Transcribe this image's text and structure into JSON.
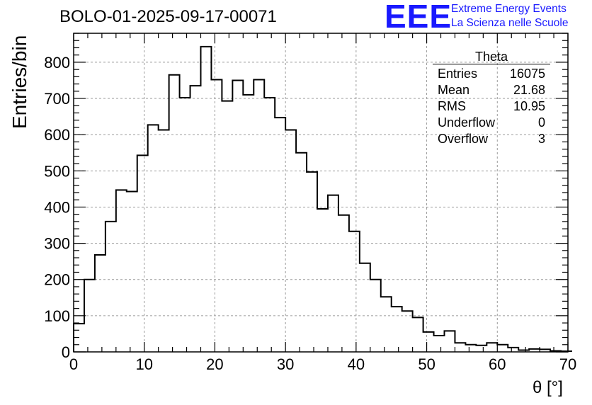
{
  "title": "BOLO-01-2025-09-17-00071",
  "logo": {
    "mark": "EEE",
    "line1": "Extreme Energy Events",
    "line2": "La Scienza nelle Scuole"
  },
  "stats": {
    "name": "Theta",
    "rows": [
      {
        "label": "Entries",
        "value": "16075"
      },
      {
        "label": "Mean",
        "value": "21.68"
      },
      {
        "label": "RMS",
        "value": "10.95"
      },
      {
        "label": "Underflow",
        "value": "0"
      },
      {
        "label": "Overflow",
        "value": "3"
      }
    ]
  },
  "colors": {
    "accent": "#1919ff",
    "line": "#000000",
    "grid": "#9a9a9a"
  },
  "chart_data": {
    "type": "bar",
    "style": "step-histogram",
    "title": "BOLO-01-2025-09-17-00071",
    "xlabel": "θ [°]",
    "ylabel": "Entries/bin",
    "xlim": [
      0,
      70
    ],
    "ylim": [
      0,
      880
    ],
    "bin_width": 1.5,
    "xticks": [
      0,
      10,
      20,
      30,
      40,
      50,
      60,
      70
    ],
    "yticks": [
      0,
      100,
      200,
      300,
      400,
      500,
      600,
      700,
      800
    ],
    "grid": true,
    "legend": "top-right",
    "values": [
      78,
      200,
      268,
      360,
      447,
      443,
      543,
      627,
      613,
      765,
      702,
      735,
      843,
      752,
      693,
      750,
      710,
      752,
      702,
      647,
      613,
      550,
      497,
      395,
      433,
      378,
      333,
      245,
      200,
      152,
      125,
      113,
      95,
      55,
      45,
      58,
      25,
      20,
      18,
      25,
      20,
      12,
      5,
      8,
      7,
      3,
      2
    ]
  }
}
